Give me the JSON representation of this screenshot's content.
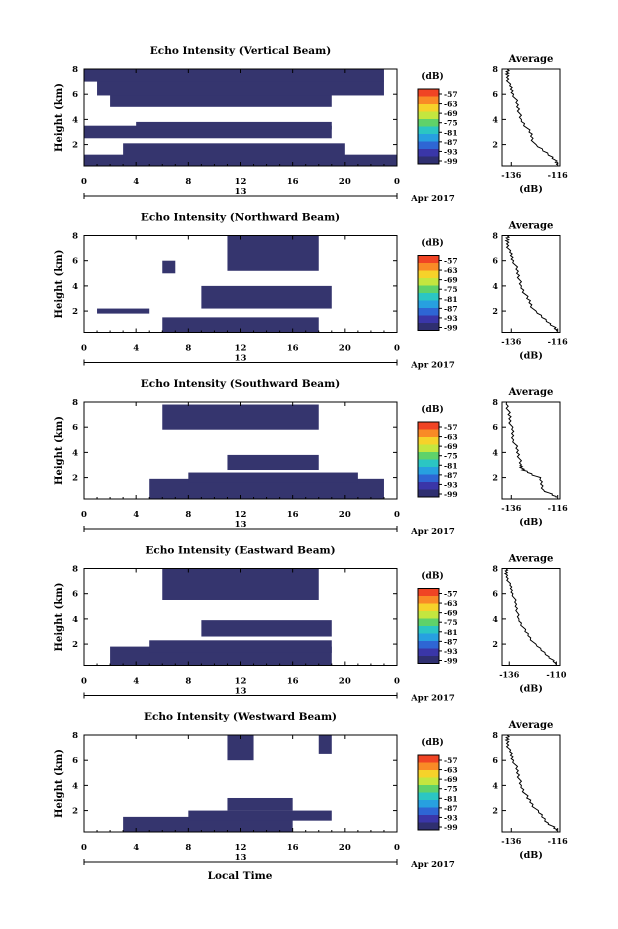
{
  "figure": {
    "date_label": "Apr 2017",
    "day_label": "13",
    "footer_xlabel": "Local Time",
    "colorbar": {
      "unit_label": "(dB)",
      "ticks": [
        "-57",
        "-63",
        "-69",
        "-75",
        "-81",
        "-87",
        "-93",
        "-99"
      ],
      "colors": [
        "#f04424",
        "#f98a26",
        "#f6d22a",
        "#c4e63f",
        "#5fd26a",
        "#2bc6c3",
        "#27a0e0",
        "#2e66d4",
        "#3a36a8",
        "#2f2f70"
      ]
    },
    "avg_title": "Average",
    "avg_xlabel": "(dB)"
  },
  "chart_data": [
    {
      "type": "heatmap",
      "title": "Echo Intensity (Vertical Beam)",
      "xlabel": "Local Time",
      "ylabel": "Height (km)",
      "x_ticks": [
        "0",
        "4",
        "8",
        "12",
        "16",
        "20",
        "0"
      ],
      "xlim": [
        0,
        24
      ],
      "y_ticks": [
        "2",
        "4",
        "6",
        "8"
      ],
      "ylim": [
        0.3,
        8
      ],
      "dominant_value_db": -99,
      "echo_blocks_hours_km": [
        [
          0,
          0.3,
          24,
          0.9
        ],
        [
          3,
          0.6,
          17,
          1.5
        ],
        [
          0,
          2.5,
          19,
          1.0
        ],
        [
          4,
          3.2,
          15,
          0.6
        ],
        [
          2,
          5.0,
          17,
          1.0
        ],
        [
          1,
          5.9,
          22,
          1.2
        ],
        [
          0,
          7.0,
          23,
          1.0
        ]
      ],
      "average": {
        "title": "Average",
        "xlabel": "(dB)",
        "x_ticks": [
          "-136",
          "-116"
        ],
        "xlim": [
          -140,
          -115
        ],
        "y_ticks": [
          "2",
          "4",
          "6",
          "8"
        ],
        "ylim": [
          0.3,
          8
        ],
        "height_km": [
          0.4,
          1.0,
          2.0,
          3.0,
          4.0,
          5.0,
          6.0,
          6.8,
          7.6,
          8.0
        ],
        "intensity_db": [
          -116,
          -118,
          -126,
          -128,
          -132,
          -133,
          -135,
          -137,
          -138,
          -137
        ]
      }
    },
    {
      "type": "heatmap",
      "title": "Echo Intensity (Northward Beam)",
      "xlabel": "Local Time",
      "ylabel": "Height (km)",
      "x_ticks": [
        "0",
        "4",
        "8",
        "12",
        "16",
        "20",
        "0"
      ],
      "xlim": [
        0,
        24
      ],
      "y_ticks": [
        "2",
        "4",
        "6",
        "8"
      ],
      "ylim": [
        0.3,
        8
      ],
      "dominant_value_db": -99,
      "echo_blocks_hours_km": [
        [
          6,
          0.3,
          12,
          1.2
        ],
        [
          1,
          1.8,
          4,
          0.4
        ],
        [
          9,
          2.2,
          10,
          1.8
        ],
        [
          11,
          5.2,
          7,
          2.8
        ],
        [
          6,
          5.0,
          1,
          1.0
        ]
      ],
      "average": {
        "title": "Average",
        "xlabel": "(dB)",
        "x_ticks": [
          "-136",
          "-116"
        ],
        "xlim": [
          -140,
          -115
        ],
        "y_ticks": [
          "2",
          "4",
          "6",
          "8"
        ],
        "ylim": [
          0.3,
          8
        ],
        "height_km": [
          0.4,
          1.0,
          2.0,
          3.0,
          4.0,
          5.0,
          6.0,
          6.8,
          7.6,
          8.0
        ],
        "intensity_db": [
          -116,
          -119,
          -126,
          -129,
          -132,
          -133,
          -135,
          -137,
          -138,
          -137
        ]
      }
    },
    {
      "type": "heatmap",
      "title": "Echo Intensity (Southward Beam)",
      "xlabel": "Local Time",
      "ylabel": "Height (km)",
      "x_ticks": [
        "0",
        "4",
        "8",
        "12",
        "16",
        "20",
        "0"
      ],
      "xlim": [
        0,
        24
      ],
      "y_ticks": [
        "2",
        "4",
        "6",
        "8"
      ],
      "ylim": [
        0.3,
        8
      ],
      "dominant_value_db": -99,
      "echo_blocks_hours_km": [
        [
          5,
          0.3,
          18,
          1.6
        ],
        [
          8,
          1.6,
          13,
          0.8
        ],
        [
          11,
          2.6,
          7,
          1.2
        ],
        [
          6,
          5.8,
          12,
          2.0
        ]
      ],
      "average": {
        "title": "Average",
        "xlabel": "(dB)",
        "x_ticks": [
          "-136",
          "-116"
        ],
        "xlim": [
          -140,
          -115
        ],
        "y_ticks": [
          "2",
          "4",
          "6",
          "8"
        ],
        "ylim": [
          0.3,
          8
        ],
        "height_km": [
          0.4,
          1.0,
          2.0,
          2.6,
          3.0,
          4.0,
          5.0,
          6.0,
          7.0,
          8.0
        ],
        "intensity_db": [
          -116,
          -122,
          -124,
          -131,
          -132,
          -133,
          -135,
          -136,
          -137,
          -138
        ]
      }
    },
    {
      "type": "heatmap",
      "title": "Echo Intensity (Eastward Beam)",
      "xlabel": "Local Time",
      "ylabel": "Height (km)",
      "x_ticks": [
        "0",
        "4",
        "8",
        "12",
        "16",
        "20",
        "0"
      ],
      "xlim": [
        0,
        24
      ],
      "y_ticks": [
        "2",
        "4",
        "6",
        "8"
      ],
      "ylim": [
        0.3,
        8
      ],
      "dominant_value_db": -99,
      "echo_blocks_hours_km": [
        [
          2,
          0.3,
          17,
          1.5
        ],
        [
          5,
          1.3,
          14,
          1.0
        ],
        [
          9,
          2.6,
          10,
          1.3
        ],
        [
          6,
          5.5,
          12,
          2.5
        ]
      ],
      "average": {
        "title": "Average",
        "xlabel": "(dB)",
        "x_ticks": [
          "-136",
          "-110"
        ],
        "xlim": [
          -140,
          -108
        ],
        "y_ticks": [
          "2",
          "4",
          "6",
          "8"
        ],
        "ylim": [
          0.3,
          8
        ],
        "height_km": [
          0.4,
          1.0,
          2.0,
          3.0,
          4.0,
          5.0,
          6.0,
          6.8,
          7.6,
          8.0
        ],
        "intensity_db": [
          -110,
          -114,
          -122,
          -127,
          -131,
          -132,
          -134,
          -136,
          -138,
          -137
        ]
      }
    },
    {
      "type": "heatmap",
      "title": "Echo Intensity (Westward Beam)",
      "xlabel": "Local Time",
      "ylabel": "Height (km)",
      "x_ticks": [
        "0",
        "4",
        "8",
        "12",
        "16",
        "20",
        "0"
      ],
      "xlim": [
        0,
        24
      ],
      "y_ticks": [
        "2",
        "4",
        "6",
        "8"
      ],
      "ylim": [
        0.3,
        8
      ],
      "dominant_value_db": -99,
      "echo_blocks_hours_km": [
        [
          3,
          0.3,
          13,
          1.2
        ],
        [
          8,
          1.2,
          11,
          0.8
        ],
        [
          11,
          2.0,
          5,
          1.0
        ],
        [
          11,
          6.0,
          2,
          2.0
        ],
        [
          18,
          6.5,
          1,
          1.5
        ]
      ],
      "average": {
        "title": "Average",
        "xlabel": "(dB)",
        "x_ticks": [
          "-136",
          "-116"
        ],
        "xlim": [
          -140,
          -115
        ],
        "y_ticks": [
          "2",
          "4",
          "6",
          "8"
        ],
        "ylim": [
          0.3,
          8
        ],
        "height_km": [
          0.4,
          1.0,
          2.0,
          3.0,
          4.0,
          5.0,
          6.0,
          6.8,
          7.6,
          8.0
        ],
        "intensity_db": [
          -116,
          -120,
          -125,
          -129,
          -132,
          -133,
          -135,
          -137,
          -138,
          -137
        ]
      }
    }
  ]
}
